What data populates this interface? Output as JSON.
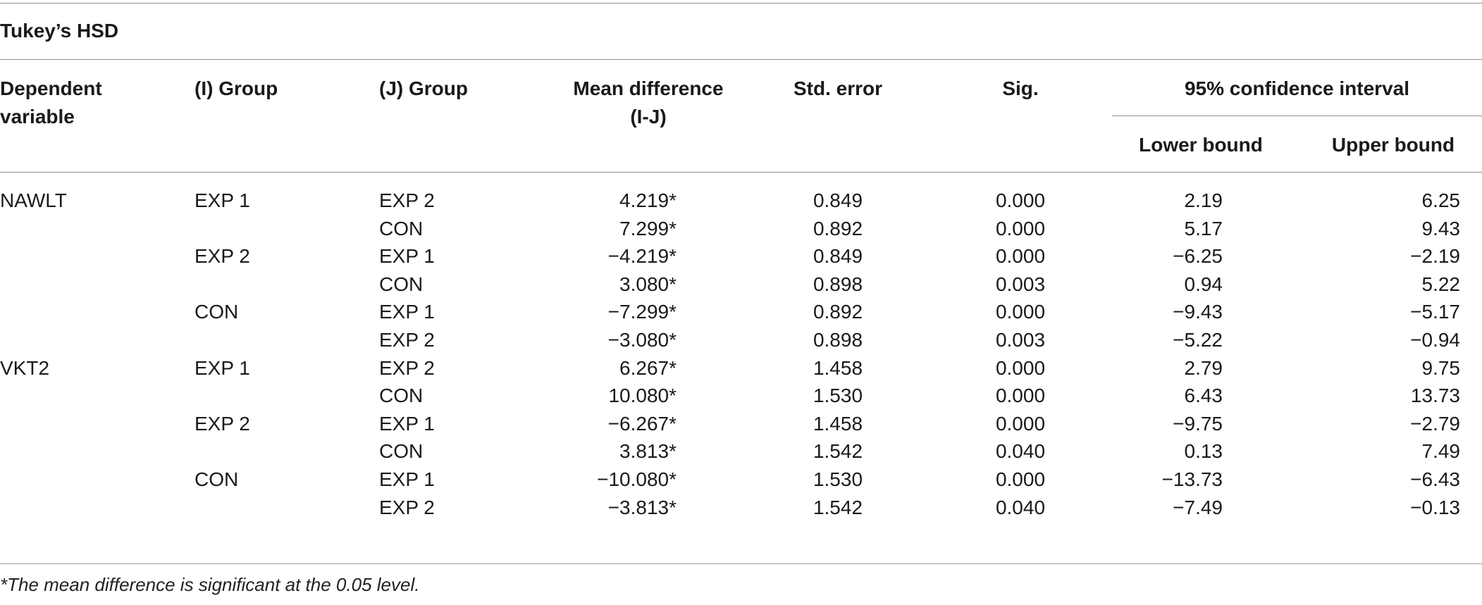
{
  "caption": "Tukey’s HSD",
  "headers": {
    "dependent_variable": [
      "Dependent",
      "variable"
    ],
    "i_group": "(I) Group",
    "j_group": "(J) Group",
    "mean_difference": [
      "Mean difference",
      "(I-J)"
    ],
    "std_error": "Std. error",
    "sig": "Sig.",
    "ci": "95% confidence interval",
    "lower_bound": "Lower bound",
    "upper_bound": "Upper bound"
  },
  "rows": [
    {
      "dv": "NAWLT",
      "i": "EXP 1",
      "j": "EXP 2",
      "md": "4.219*",
      "se": "0.849",
      "sig": "0.000",
      "lb": "2.19",
      "ub": "6.25"
    },
    {
      "dv": "",
      "i": "",
      "j": "CON",
      "md": "7.299*",
      "se": "0.892",
      "sig": "0.000",
      "lb": "5.17",
      "ub": "9.43"
    },
    {
      "dv": "",
      "i": "EXP 2",
      "j": "EXP 1",
      "md": "−4.219*",
      "se": "0.849",
      "sig": "0.000",
      "lb": "−6.25",
      "ub": "−2.19"
    },
    {
      "dv": "",
      "i": "",
      "j": "CON",
      "md": "3.080*",
      "se": "0.898",
      "sig": "0.003",
      "lb": "0.94",
      "ub": "5.22"
    },
    {
      "dv": "",
      "i": "CON",
      "j": "EXP 1",
      "md": "−7.299*",
      "se": "0.892",
      "sig": "0.000",
      "lb": "−9.43",
      "ub": "−5.17"
    },
    {
      "dv": "",
      "i": "",
      "j": "EXP 2",
      "md": "−3.080*",
      "se": "0.898",
      "sig": "0.003",
      "lb": "−5.22",
      "ub": "−0.94"
    },
    {
      "dv": "VKT2",
      "i": "EXP 1",
      "j": "EXP 2",
      "md": "6.267*",
      "se": "1.458",
      "sig": "0.000",
      "lb": "2.79",
      "ub": "9.75"
    },
    {
      "dv": "",
      "i": "",
      "j": "CON",
      "md": "10.080*",
      "se": "1.530",
      "sig": "0.000",
      "lb": "6.43",
      "ub": "13.73"
    },
    {
      "dv": "",
      "i": "EXP 2",
      "j": "EXP 1",
      "md": "−6.267*",
      "se": "1.458",
      "sig": "0.000",
      "lb": "−9.75",
      "ub": "−2.79"
    },
    {
      "dv": "",
      "i": "",
      "j": "CON",
      "md": "3.813*",
      "se": "1.542",
      "sig": "0.040",
      "lb": "0.13",
      "ub": "7.49"
    },
    {
      "dv": "",
      "i": "CON",
      "j": "EXP 1",
      "md": "−10.080*",
      "se": "1.530",
      "sig": "0.000",
      "lb": "−13.73",
      "ub": "−6.43"
    },
    {
      "dv": "",
      "i": "",
      "j": "EXP 2",
      "md": "−3.813*",
      "se": "1.542",
      "sig": "0.040",
      "lb": "−7.49",
      "ub": "−0.13"
    }
  ],
  "footnote": "*The mean difference is significant at the 0.05 level."
}
